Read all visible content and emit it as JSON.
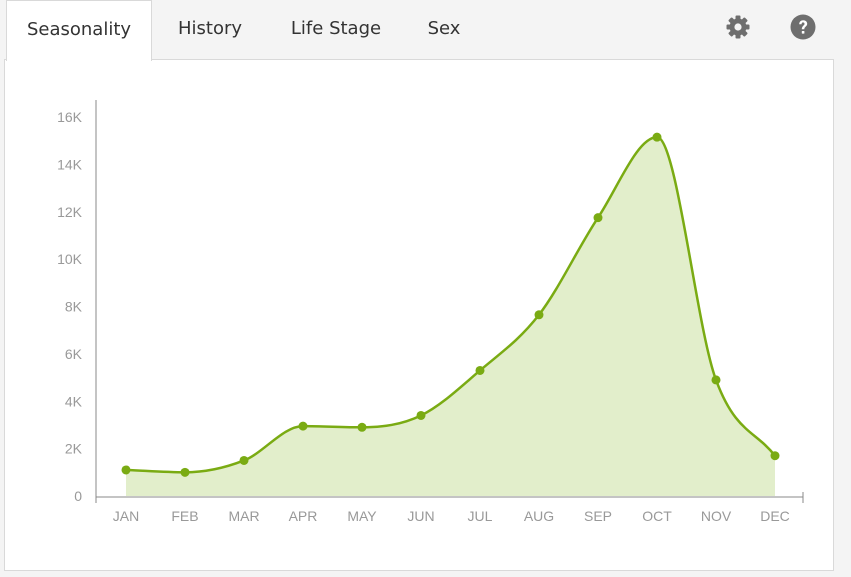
{
  "tabs": [
    {
      "label": "Seasonality",
      "active": true
    },
    {
      "label": "History",
      "active": false
    },
    {
      "label": "Life Stage",
      "active": false
    },
    {
      "label": "Sex",
      "active": false
    }
  ],
  "toolbar": {
    "settings_icon": "gear-icon",
    "help_icon": "question-circle-icon"
  },
  "colors": {
    "line": "#7aab13",
    "area": "#e2eecb",
    "axis_text": "#999999",
    "axis_line": "#888888",
    "icon": "#6e6e6e"
  },
  "chart_data": {
    "type": "area",
    "title": "",
    "xlabel": "",
    "ylabel": "",
    "categories": [
      "JAN",
      "FEB",
      "MAR",
      "APR",
      "MAY",
      "JUN",
      "JUL",
      "AUG",
      "SEP",
      "OCT",
      "NOV",
      "DEC"
    ],
    "values": [
      1100,
      1000,
      1500,
      2950,
      2900,
      3400,
      5300,
      7650,
      11750,
      15150,
      4900,
      1700
    ],
    "ylim": [
      0,
      16000
    ],
    "yticks": [
      0,
      2000,
      4000,
      6000,
      8000,
      10000,
      12000,
      14000,
      16000
    ],
    "ytick_labels": [
      "0",
      "2K",
      "4K",
      "6K",
      "8K",
      "10K",
      "12K",
      "14K",
      "16K"
    ],
    "grid": false,
    "smooth": true,
    "markers": true
  }
}
